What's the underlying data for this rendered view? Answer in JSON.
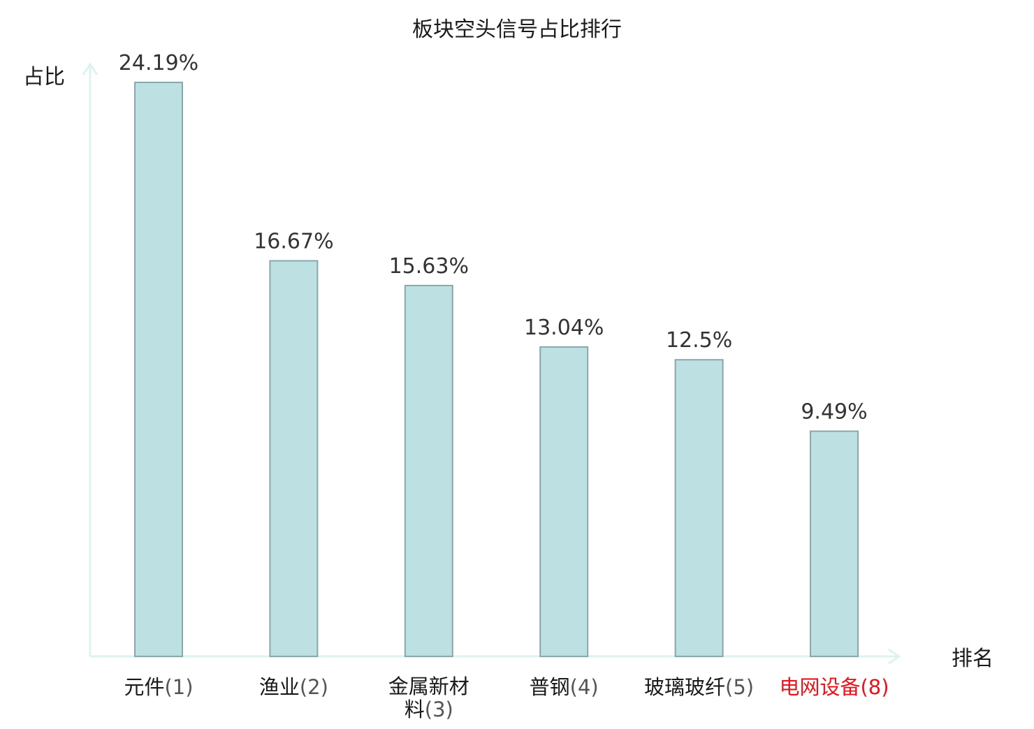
{
  "chart_data": {
    "type": "bar",
    "title": "板块空头信号占比排行",
    "ylabel": "占比",
    "xlabel": "排名",
    "categories": [
      {
        "name": "元件",
        "rank": "(1)",
        "highlight": false
      },
      {
        "name": "渔业",
        "rank": "(2)",
        "highlight": false
      },
      {
        "name": "金属新材料",
        "rank": "(3)",
        "highlight": false
      },
      {
        "name": "普钢",
        "rank": "(4)",
        "highlight": false
      },
      {
        "name": "玻璃玻纤",
        "rank": "(5)",
        "highlight": false
      },
      {
        "name": "电网设备",
        "rank": "(8)",
        "highlight": true
      }
    ],
    "values": [
      24.19,
      16.67,
      15.63,
      13.04,
      12.5,
      9.49
    ],
    "value_labels": [
      "24.19%",
      "16.67%",
      "15.63%",
      "13.04%",
      "12.5%",
      "9.49%"
    ],
    "ylim": [
      0,
      24.19
    ],
    "grid": false,
    "legend": "none"
  },
  "colors": {
    "bar_fill": "#bde0e2",
    "bar_stroke": "#88a8aa",
    "axis": "#dff2ef",
    "text": "#333333",
    "title": "#1a1a1a",
    "highlight": "#e8141b"
  }
}
